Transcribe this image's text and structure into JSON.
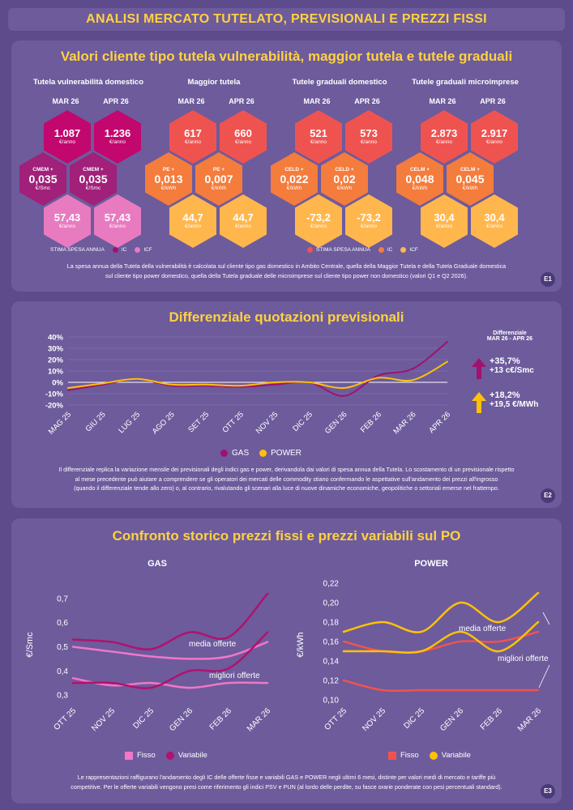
{
  "header": {
    "title": "ANALISI MERCATO TUTELATO, PREVISIONALI E PREZZI FISSI"
  },
  "e1": {
    "title": "Valori cliente tipo tutela vulnerabilità, maggior tutela e tutele graduali",
    "groups": [
      {
        "title": "Tutela vulnerabilità domestico",
        "m1": "MAR 26",
        "m2": "APR 26",
        "top": [
          {
            "v": "1.087",
            "u": "€/anno"
          },
          {
            "v": "1.236",
            "u": "€/anno"
          }
        ],
        "mid": [
          {
            "l": "CMEM +",
            "v": "0,035",
            "u": "€/Smc"
          },
          {
            "l": "CMEM +",
            "v": "0,035",
            "u": "€/Smc"
          }
        ],
        "bot": [
          {
            "v": "57,43",
            "u": "€/anno"
          },
          {
            "v": "57,43",
            "u": "€/anno"
          }
        ]
      },
      {
        "title": "Maggior tutela",
        "m1": "MAR 26",
        "m2": "APR 26",
        "top": [
          {
            "v": "617",
            "u": "€/anno"
          },
          {
            "v": "660",
            "u": "€/anno"
          }
        ],
        "mid": [
          {
            "l": "PE +",
            "v": "0,013",
            "u": "€/kWh"
          },
          {
            "l": "PE +",
            "v": "0,007",
            "u": "€/kWh"
          }
        ],
        "bot": [
          {
            "v": "44,7",
            "u": "€/anno"
          },
          {
            "v": "44,7",
            "u": "€/anno"
          }
        ]
      },
      {
        "title": "Tutele graduali domestico",
        "m1": "MAR 26",
        "m2": "APR 26",
        "top": [
          {
            "v": "521",
            "u": "€/anno"
          },
          {
            "v": "573",
            "u": "€/anno"
          }
        ],
        "mid": [
          {
            "l": "CELD +",
            "v": "0,022",
            "u": "€/kWh"
          },
          {
            "l": "CELD +",
            "v": "0,02",
            "u": "€/kWh"
          }
        ],
        "bot": [
          {
            "v": "-73,2",
            "u": "€/anno"
          },
          {
            "v": "-73,2",
            "u": "€/anno"
          }
        ]
      },
      {
        "title": "Tutele graduali microimprese",
        "m1": "MAR 26",
        "m2": "APR 26",
        "top": [
          {
            "v": "2.873",
            "u": "€/anno"
          },
          {
            "v": "2.917",
            "u": "€/anno"
          }
        ],
        "mid": [
          {
            "l": "CELM +",
            "v": "0,048",
            "u": "€/kWh"
          },
          {
            "l": "CELM +",
            "v": "0,045",
            "u": "€/kWh"
          }
        ],
        "bot": [
          {
            "v": "30,4",
            "u": "€/anno"
          },
          {
            "v": "30,4",
            "u": "€/anno"
          }
        ]
      }
    ],
    "legend_gas": {
      "stima": "STIMA SPESA ANNUA",
      "ic": "IC",
      "icf": "ICF"
    },
    "legend_power": {
      "stima": "STIMA SPESA ANNUA",
      "ic": "IC",
      "icf": "ICF"
    },
    "note1": "La spesa annua della Tutela della vulnerabilità è calcolata sul cliente tipo gas domestico in Ambito Centrale, quella della Maggior Tutela e della Tutela Graduale domestica",
    "note2": "sul cliente tipo power domestico, quella della Tutela graduale delle microimprese sul cliente tipo power non domestico (valori Q1 e Q2 2026).",
    "badge": "E1",
    "colors": {
      "gas_top": "#c2076e",
      "gas_mid": "#a0207a",
      "gas_bot": "#e87bc0",
      "pw_top": "#ef5350",
      "pw_mid": "#f47c3c",
      "pw_bot": "#ffb74d"
    }
  },
  "e2": {
    "title": "Differenziale quotazioni previsionali",
    "diff_title1": "Differenziale",
    "diff_title2": "MAR 26 - APR 26",
    "gas_pct": "+35,7%",
    "gas_abs": "+13 c€/Smc",
    "power_pct": "+18,2%",
    "power_abs": "+19,5 €/MWh",
    "note1": "Il differenziale replica la variazione mensile dei previsionali degli indici gas e power, derivandola dai valori di spesa annua della Tutela. Lo scostamento di un previsionale rispetto",
    "note2": "al mese precedente può aiutare a comprendere se gli operatori dei mercati delle commodity stiano confermando le aspettative sull'andamento dei prezzi all'ingrosso",
    "note3": "(quando il differenziale tende allo zero) o, al contrario, rivalutando gli scenari alla luce di nuove dinamiche economiche, geopolitiche o settoriali emerse nel frattempo.",
    "badge": "E2"
  },
  "e3": {
    "title": "Confronto storico prezzi fissi e prezzi variabili sul PO",
    "gas_title": "GAS",
    "power_title": "POWER",
    "gas_ylabel": "€/Smc",
    "power_ylabel": "€/kWh",
    "gas_annot_media": "media offerte",
    "gas_annot_migliori": "migliori offerte",
    "power_annot_media": "media offerte",
    "power_annot_migliori": "migliori offerte",
    "gas_legend": {
      "fisso": "Fisso",
      "variabile": "Variabile"
    },
    "power_legend": {
      "fisso": "Fisso",
      "variabile": "Variabile"
    },
    "note1": "Le rappresentazioni raffigurano l'andamento degli IC delle offerte fisse e variabili GAS e POWER negli ultimi 6 mesi, distinte per valori medi di mercato e tariffe più",
    "note2": "competitive. Per le offerte variabili vengono presi come riferimento gli indici PSV e PUN (al lordo delle perdite, su fasce orarie ponderate con pesi percentuali standard).",
    "badge": "E3"
  },
  "chart_data": [
    {
      "type": "line",
      "title": "Differenziale quotazioni previsionali",
      "x": [
        "MAG 25",
        "GIU 25",
        "LUG 25",
        "AGO 25",
        "SET 25",
        "OTT 25",
        "NOV 25",
        "DIC 25",
        "GEN 26",
        "FEB 26",
        "MAR 26",
        "APR 26"
      ],
      "y_ticks": [
        "40%",
        "30%",
        "20%",
        "10%",
        "0%",
        "-10%",
        "-20%"
      ],
      "ylim": [
        -20,
        40
      ],
      "series": [
        {
          "name": "GAS",
          "color": "#a0126e",
          "values": [
            -7,
            -2,
            3,
            -3,
            -3,
            -4,
            -2,
            0,
            -12,
            6,
            12,
            35.7
          ]
        },
        {
          "name": "POWER",
          "color": "#ffc107",
          "values": [
            -5,
            -1,
            3,
            -2,
            -2,
            -3,
            0,
            0,
            -5,
            4,
            2,
            18.2
          ]
        }
      ],
      "legend": "bottom"
    },
    {
      "type": "line",
      "title": "GAS",
      "ylabel": "€/Smc",
      "x": [
        "OTT 25",
        "NOV 25",
        "DIC 25",
        "GEN 26",
        "FEB 26",
        "MAR 26"
      ],
      "y_ticks": [
        "0,7",
        "0,6",
        "0,5",
        "0,4",
        "0,3"
      ],
      "ylim": [
        0.28,
        0.73
      ],
      "series": [
        {
          "name": "Fisso",
          "group": "media offerte",
          "color": "#f277c6",
          "values": [
            0.5,
            0.48,
            0.46,
            0.45,
            0.46,
            0.52
          ]
        },
        {
          "name": "Fisso",
          "group": "migliori offerte",
          "color": "#f277c6",
          "values": [
            0.37,
            0.34,
            0.35,
            0.33,
            0.35,
            0.35
          ]
        },
        {
          "name": "Variabile",
          "group": "media offerte",
          "color": "#b0126e",
          "values": [
            0.53,
            0.52,
            0.49,
            0.56,
            0.54,
            0.72
          ]
        },
        {
          "name": "Variabile",
          "group": "migliori offerte",
          "color": "#b0126e",
          "values": [
            0.35,
            0.35,
            0.33,
            0.4,
            0.41,
            0.56
          ]
        }
      ],
      "legend": "bottom"
    },
    {
      "type": "line",
      "title": "POWER",
      "ylabel": "€/kWh",
      "x": [
        "OTT 25",
        "NOV 25",
        "DIC 25",
        "GEN 26",
        "FEB 26",
        "MAR 26"
      ],
      "y_ticks": [
        "0,22",
        "0,20",
        "0,18",
        "0,16",
        "0,14",
        "0,12",
        "0,10"
      ],
      "ylim": [
        0.1,
        0.22
      ],
      "series": [
        {
          "name": "Fisso",
          "group": "media offerte",
          "color": "#ef5350",
          "values": [
            0.16,
            0.15,
            0.15,
            0.16,
            0.16,
            0.17
          ]
        },
        {
          "name": "Fisso",
          "group": "migliori offerte",
          "color": "#ef5350",
          "values": [
            0.12,
            0.11,
            0.11,
            0.11,
            0.11,
            0.11
          ]
        },
        {
          "name": "Variabile",
          "group": "media offerte",
          "color": "#ffc107",
          "values": [
            0.17,
            0.18,
            0.17,
            0.2,
            0.18,
            0.21
          ]
        },
        {
          "name": "Variabile",
          "group": "migliori offerte",
          "color": "#ffc107",
          "values": [
            0.15,
            0.15,
            0.15,
            0.17,
            0.15,
            0.18
          ]
        }
      ],
      "legend": "bottom"
    }
  ]
}
